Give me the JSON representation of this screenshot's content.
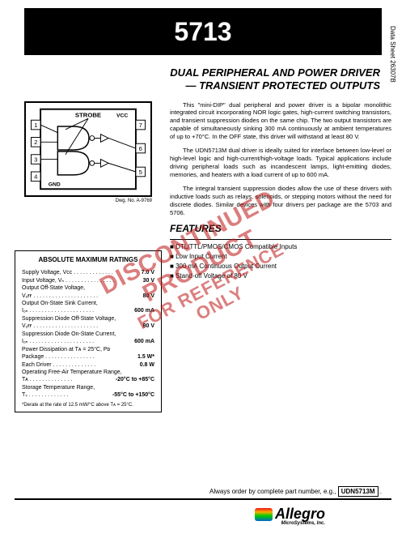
{
  "header": {
    "part_no": "5713",
    "side_label": "Data Sheet\n26307B"
  },
  "title": {
    "line1": "DUAL PERIPHERAL AND POWER DRIVER",
    "line2": "— TRANSIENT PROTECTED OUTPUTS"
  },
  "figure": {
    "dwg_label": "Dwg. No. A-9769",
    "pin_labels": {
      "strobe": "STROBE",
      "vcc": "VCC",
      "gnd": "GND"
    },
    "pins_left": [
      "1",
      "2",
      "3",
      "4"
    ],
    "pins_right": [
      "7",
      "6",
      "5"
    ]
  },
  "paragraphs": [
    "This \"mini-DIP\" dual peripheral and power driver is a bipolar monolithic integrated circuit incorporating NOR logic gates, high-current switching transistors, and transient suppression diodes on the same chip.  The two output transistors are capable of simultaneously sinking 300 mA continuously at ambient temperatures of up to +70°C. In the OFF state, this driver will withstand at least 80 V.",
    "The UDN5713M dual driver is ideally suited for interface between low-level or high-level logic and high-current/high-voltage loads. Typical applications include driving peripheral loads such as incandescent lamps, light-emitting diodes, memories, and heaters with a load current of up to 600 mA.",
    "The integral transient suppression diodes allow the use of these drivers with inductive loads such as relays, solenoids, or stepping motors without the need for discrete diodes.  Similar devices with four drivers per package are the 5703 and 5706."
  ],
  "features": {
    "heading": "FEATURES",
    "items": [
      "DTL/TTL/PMOS/CMOS Compatible Inputs",
      "Low Input Current",
      "300 mA Continuous Output Current",
      "Stand-off Voltage of 80 V"
    ]
  },
  "ratings": {
    "heading": "ABSOLUTE MAXIMUM RATINGS",
    "rows": [
      {
        "label": "Supply Voltage, Vᴄᴄ . . . . . . . . . . . . .",
        "value": "7.0 V"
      },
      {
        "label": "Input Voltage, Vₙ . . . . . . . . . . . . . . . .",
        "value": "30 V"
      },
      {
        "label": "Output Off-State Voltage,",
        "value": ""
      },
      {
        "label": "    Vₒғғ . . . . . . . . . . . . . . . . . . . . .",
        "value": "80 V"
      },
      {
        "label": "Output On-State Sink Current,",
        "value": ""
      },
      {
        "label": "    Iₒₙ . . . . . . . . . . . . . . . . . . . . .",
        "value": "600 mA"
      },
      {
        "label": "Suppression Diode Off-State Voltage,",
        "value": ""
      },
      {
        "label": "    Vₒғғ . . . . . . . . . . . . . . . . . . . . .",
        "value": "80 V"
      },
      {
        "label": "Suppression Diode On-State Current,",
        "value": ""
      },
      {
        "label": "    Iₒₙ . . . . . . . . . . . . . . . . . . . . .",
        "value": "600 mA"
      },
      {
        "label": "Power Dissipation at Tᴀ = 25°C, Pᴅ",
        "value": ""
      },
      {
        "label": "    Package . . . . . . . . . . . . . . . .",
        "value": "1.5 W*"
      },
      {
        "label": "    Each Driver . . . . . . . . . . . . . .",
        "value": "0.8 W"
      },
      {
        "label": "Operating Free-Air Temperature Range,",
        "value": ""
      },
      {
        "label": "    Tᴀ . . . . . . . . . . . . . .",
        "value": "-20°C to +85°C"
      },
      {
        "label": "Storage Temperature Range,",
        "value": ""
      },
      {
        "label": "    Tₛ . . . . . . . . . . . . .",
        "value": "-55°C to +150°C"
      }
    ],
    "footnote": "*Derate at the rate of 12.5 mW/°C above Tᴀ = 25°C."
  },
  "order": {
    "text": "Always order by complete part number, e.g., ",
    "part": "UDN5713M"
  },
  "logo": {
    "name": "Allegro",
    "sub": "MicroSystems, Inc."
  },
  "watermark": {
    "l1": "DISCONTINUED PRODUCT",
    "l2": "FOR REFERENCE ONLY"
  },
  "colors": {
    "header_bg": "#000000",
    "watermark": "rgba(190,20,20,0.55)"
  }
}
